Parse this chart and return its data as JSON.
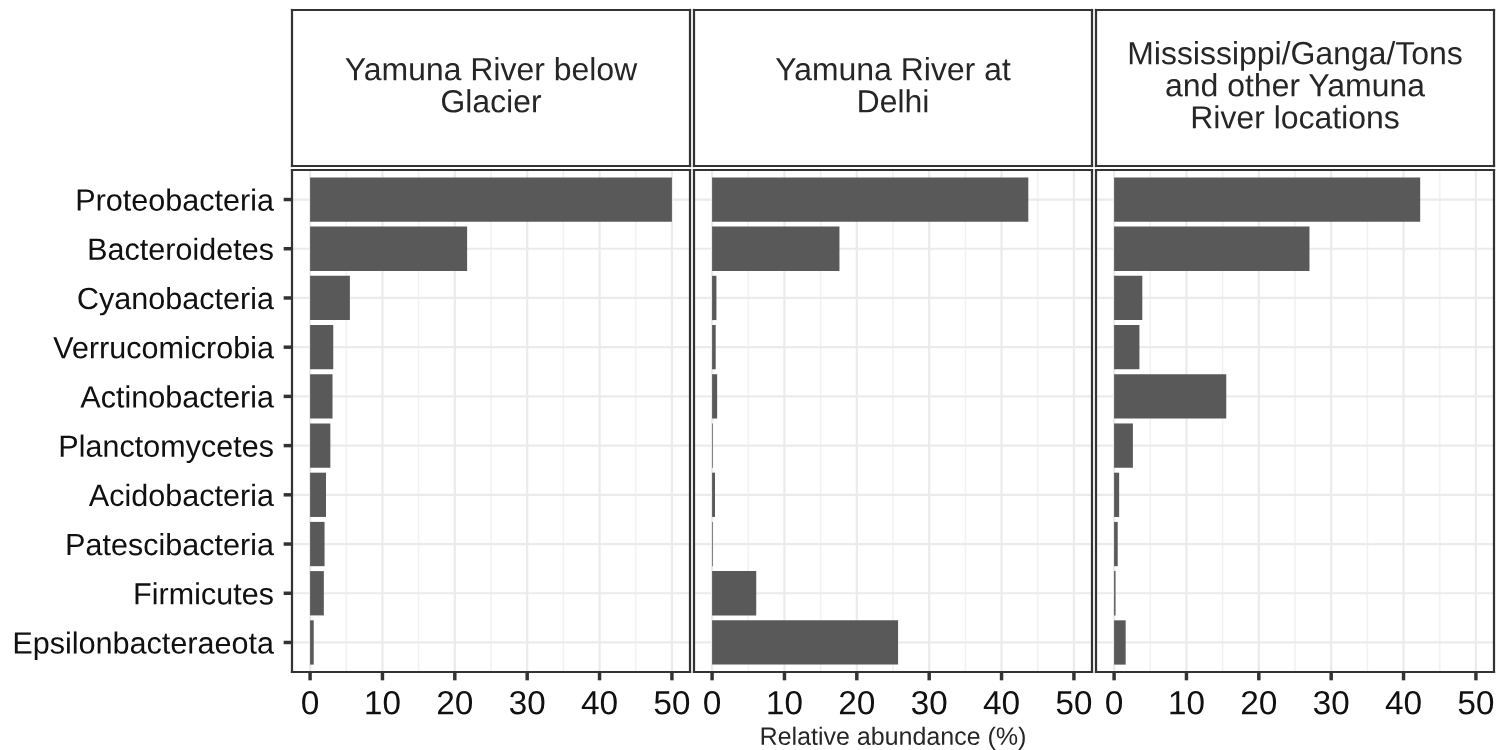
{
  "chart_data": [
    {
      "type": "bar",
      "orientation": "horizontal",
      "title": "Yamuna River below\nGlacier",
      "categories": [
        "Proteobacteria",
        "Bacteroidetes",
        "Cyanobacteria",
        "Verrucomicrobia",
        "Actinobacteria",
        "Planctomycetes",
        "Acidobacteria",
        "Patescibacteria",
        "Firmicutes",
        "Epsilonbacteraeota"
      ],
      "values": [
        50,
        21.7,
        5.5,
        3.2,
        3.1,
        2.8,
        2.2,
        2.0,
        1.9,
        0.5
      ],
      "color": "#595959",
      "xlim": [
        -2.5,
        52.5
      ],
      "xticks": [
        0,
        10,
        20,
        30,
        40,
        50
      ],
      "grid": true
    },
    {
      "type": "bar",
      "orientation": "horizontal",
      "title": "Yamuna River at\nDelhi",
      "xlabel": "Relative abundance (%)",
      "categories": [
        null,
        null,
        null,
        null,
        null,
        null,
        null,
        null,
        null,
        null
      ],
      "values": [
        43.7,
        17.6,
        0.6,
        0.5,
        0.7,
        0.1,
        0.4,
        0.1,
        6.1,
        25.7
      ],
      "color": "#595959",
      "xlim": [
        -2.5,
        52.5
      ],
      "xticks": [
        0,
        10,
        20,
        30,
        40,
        50
      ],
      "grid": true,
      "tick_labels": "x"
    },
    {
      "type": "bar",
      "orientation": "horizontal",
      "title": "Mississippi/Ganga/Tons\nand other Yamuna\nRiver locations",
      "categories": [
        null,
        null,
        null,
        null,
        null,
        null,
        null,
        null,
        null,
        null
      ],
      "values": [
        42.3,
        27.0,
        3.9,
        3.5,
        15.5,
        2.6,
        0.7,
        0.5,
        0.2,
        1.6
      ],
      "color": "#595959",
      "xlim": [
        -2.5,
        52.5
      ],
      "xticks": [
        0,
        10,
        20,
        30,
        40,
        50
      ],
      "grid": true,
      "tick_labels": "x"
    }
  ]
}
